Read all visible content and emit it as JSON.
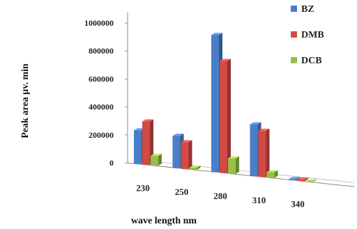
{
  "chart_data": {
    "type": "bar",
    "categories": [
      "230",
      "250",
      "280",
      "310",
      "340"
    ],
    "series": [
      {
        "name": "BZ",
        "values": [
          240000,
          230000,
          980000,
          370000,
          8000
        ],
        "color": "#4a7ec8"
      },
      {
        "name": "DMB",
        "values": [
          310000,
          190000,
          800000,
          330000,
          10000
        ],
        "color": "#d24a45"
      },
      {
        "name": "DCB",
        "values": [
          70000,
          15000,
          110000,
          40000,
          5000
        ],
        "color": "#97bf4a"
      }
    ],
    "yticks": [
      "0",
      "200000",
      "400000",
      "600000",
      "800000",
      "1000000"
    ],
    "ylim": [
      0,
      1000000
    ],
    "xlabel": "wave length nm",
    "ylabel": "Peak area µv. min",
    "legend_position": "top-right",
    "grid": false,
    "three_d": true
  }
}
